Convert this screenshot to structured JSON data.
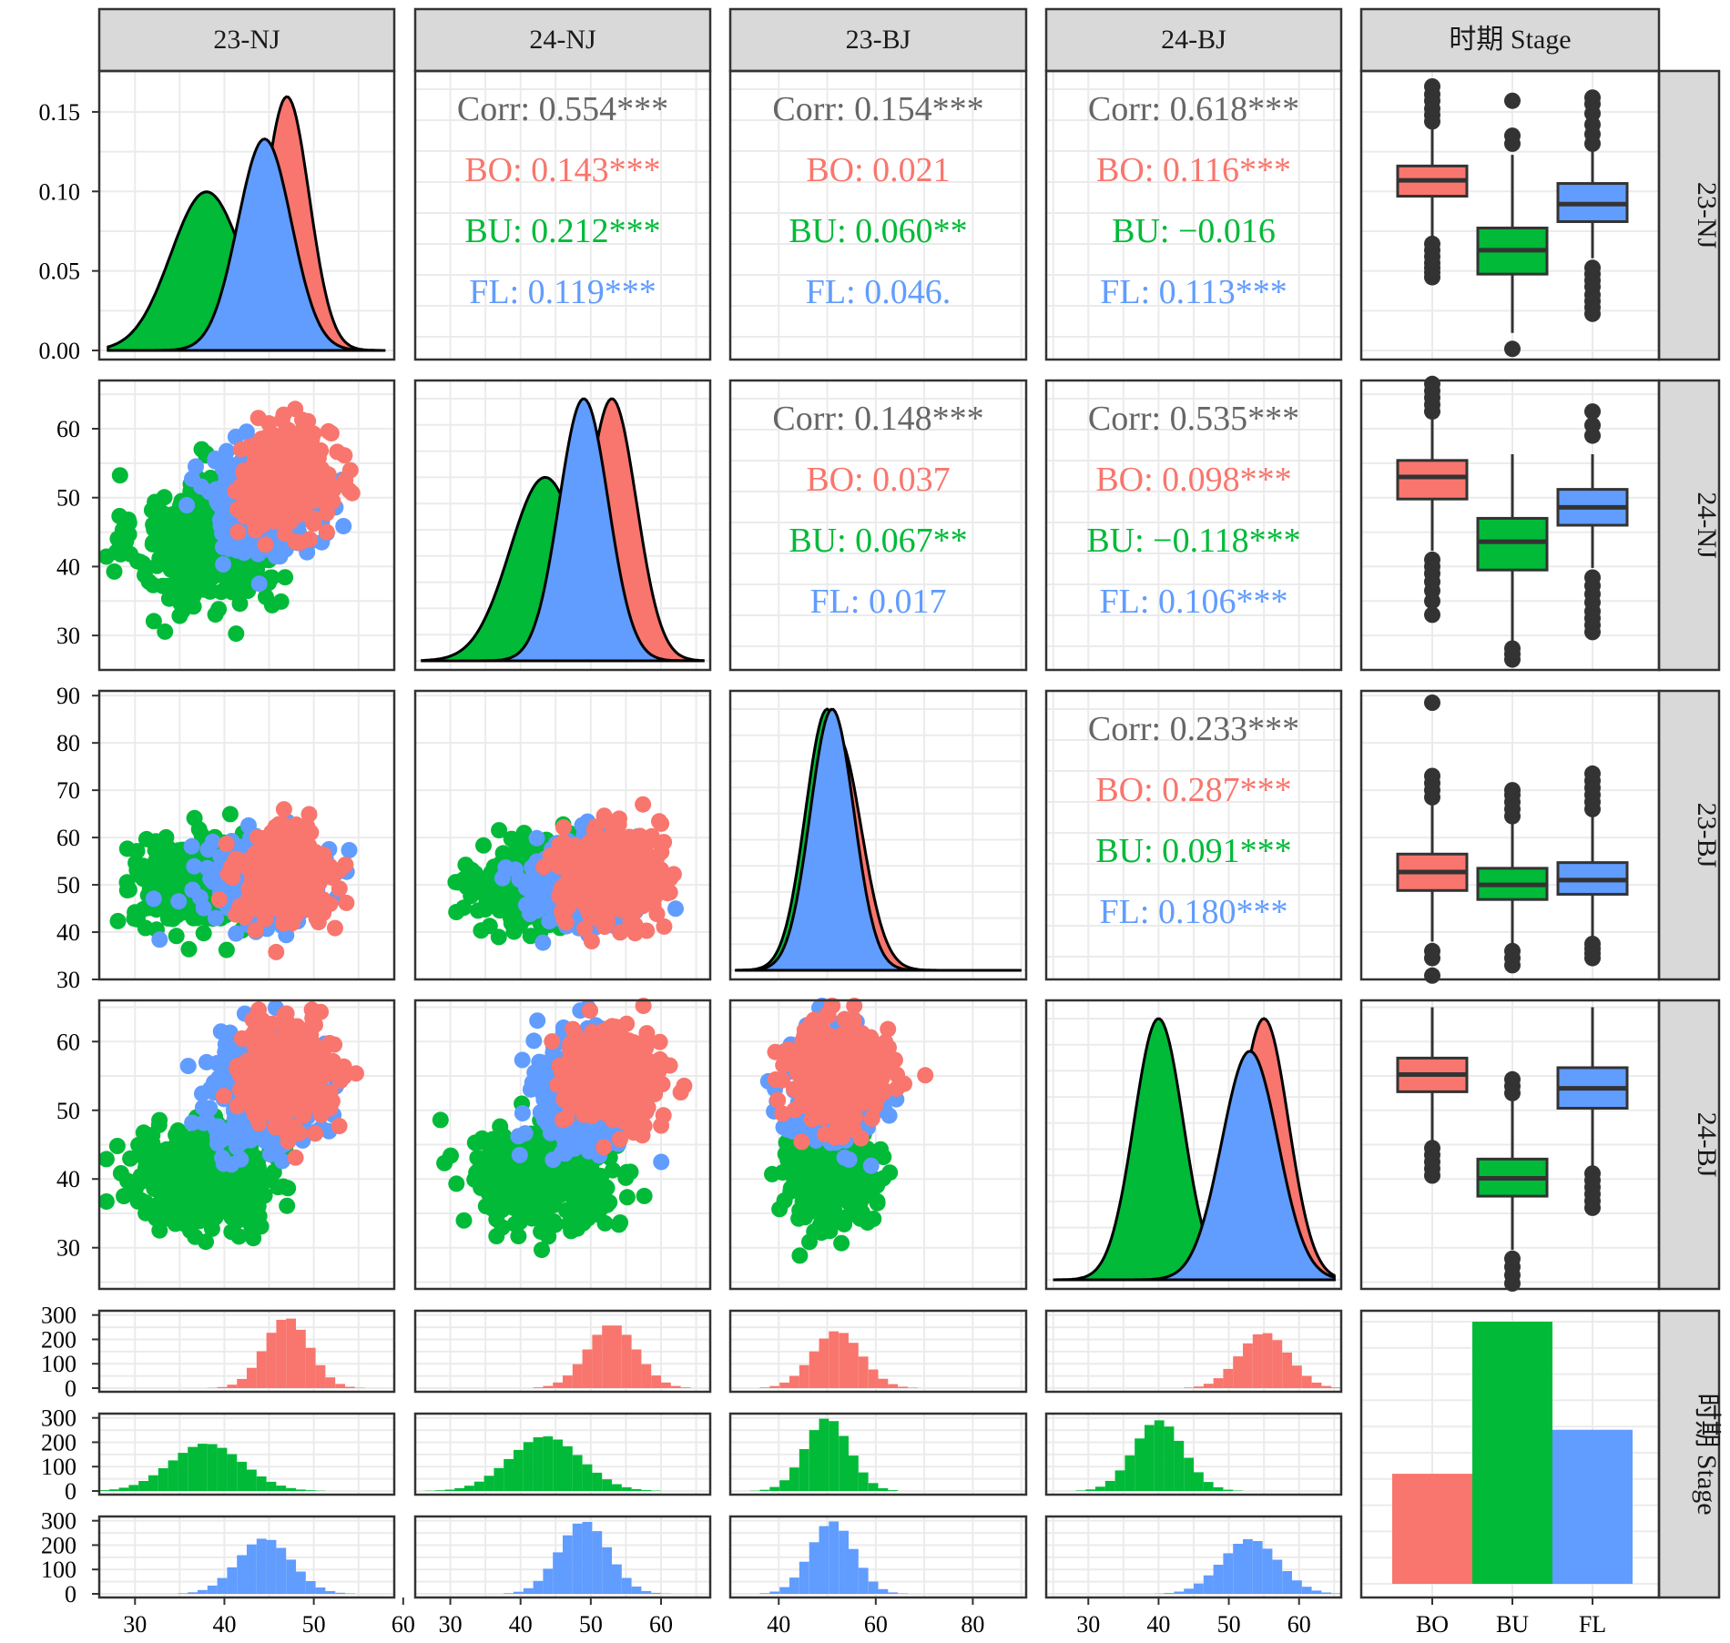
{
  "chart_data": {
    "type": "scatter",
    "variables": [
      "23-NJ",
      "24-NJ",
      "23-BJ",
      "24-BJ"
    ],
    "group_variable": "时期 Stage",
    "groups": [
      {
        "name": "BO",
        "color": "#F8766D"
      },
      {
        "name": "BU",
        "color": "#00BA38"
      },
      {
        "name": "FL",
        "color": "#619CFF"
      }
    ],
    "axis_ranges": {
      "23-NJ": [
        26,
        59
      ],
      "24-NJ": [
        25,
        67
      ],
      "23-BJ": [
        30,
        91
      ],
      "24-BJ": [
        24,
        66
      ]
    },
    "axis_ticks": {
      "23-NJ": [
        "30",
        "40",
        "50",
        "60"
      ],
      "24-NJ": [
        "30",
        "40",
        "50",
        "60"
      ],
      "23-BJ": [
        "40",
        "60",
        "80"
      ],
      "24-BJ": [
        "30",
        "40",
        "50",
        "60"
      ]
    },
    "row_axis_ticks": {
      "23-NJ": [
        "0.00",
        "0.05",
        "0.10",
        "0.15"
      ],
      "24-NJ": [
        "30",
        "40",
        "50",
        "60"
      ],
      "23-BJ": [
        "30",
        "40",
        "50",
        "60",
        "70",
        "80",
        "90"
      ],
      "24-BJ": [
        "30",
        "40",
        "50",
        "60"
      ]
    },
    "density_y_range": [
      0,
      0.17
    ],
    "group_stats": {
      "BO": {
        "23-NJ": [
          47,
          2.5
        ],
        "24-NJ": [
          53,
          3.5
        ],
        "23-BJ": [
          52,
          5
        ],
        "24-BJ": [
          55,
          3.5
        ]
      },
      "BU": {
        "23-NJ": [
          38,
          4
        ],
        "24-NJ": [
          43.5,
          5
        ],
        "23-BJ": [
          50,
          4.5
        ],
        "24-BJ": [
          40,
          3.5
        ]
      },
      "FL": {
        "23-NJ": [
          44.5,
          3
        ],
        "24-NJ": [
          49,
          3.5
        ],
        "23-BJ": [
          51,
          4.5
        ],
        "24-BJ": [
          53,
          4
        ]
      }
    },
    "correlations": [
      {
        "row": "23-NJ",
        "col": "24-NJ",
        "lines": [
          "Corr: 0.554***",
          "BO: 0.143***",
          "BU: 0.212***",
          "FL: 0.119***"
        ]
      },
      {
        "row": "23-NJ",
        "col": "23-BJ",
        "lines": [
          "Corr: 0.154***",
          "BO: 0.021",
          "BU: 0.060**",
          "FL: 0.046."
        ]
      },
      {
        "row": "23-NJ",
        "col": "24-BJ",
        "lines": [
          "Corr: 0.618***",
          "BO: 0.116***",
          "BU: −0.016",
          "FL: 0.113***"
        ]
      },
      {
        "row": "24-NJ",
        "col": "23-BJ",
        "lines": [
          "Corr: 0.148***",
          "BO: 0.037",
          "BU: 0.067**",
          "FL: 0.017"
        ]
      },
      {
        "row": "24-NJ",
        "col": "24-BJ",
        "lines": [
          "Corr: 0.535***",
          "BO: 0.098***",
          "BU: −0.118***",
          "FL: 0.106***"
        ]
      },
      {
        "row": "23-BJ",
        "col": "24-BJ",
        "lines": [
          "Corr: 0.233***",
          "BO: 0.287***",
          "BU: 0.091***",
          "FL: 0.180***"
        ]
      }
    ],
    "boxplots": {
      "23-NJ": [
        {
          "group": "BO",
          "q1": 0.097,
          "median": 0.107,
          "q3": 0.116,
          "whisker_low": 0.069,
          "whisker_high": 0.142,
          "outliers": [
            0.046,
            0.049,
            0.052,
            0.055,
            0.059,
            0.063,
            0.067,
            0.144,
            0.148,
            0.152,
            0.157,
            0.161,
            0.166
          ]
        },
        {
          "group": "BU",
          "q1": 0.048,
          "median": 0.063,
          "q3": 0.077,
          "whisker_low": 0.011,
          "whisker_high": 0.123,
          "outliers": [
            0.001,
            0.13,
            0.135,
            0.157
          ]
        },
        {
          "group": "FL",
          "q1": 0.081,
          "median": 0.092,
          "q3": 0.105,
          "whisker_low": 0.058,
          "whisker_high": 0.127,
          "outliers": [
            0.023,
            0.027,
            0.031,
            0.035,
            0.04,
            0.044,
            0.048,
            0.052,
            0.13,
            0.136,
            0.142,
            0.149,
            0.155,
            0.159
          ]
        }
      ],
      "24-NJ": [
        {
          "group": "BO",
          "q1": 49.8,
          "median": 53.0,
          "q3": 55.4,
          "whisker_low": 42.3,
          "whisker_high": 61.7,
          "outliers": [
            33,
            35,
            36.5,
            37.8,
            39,
            40,
            41,
            62.5,
            63.5,
            64.5,
            65.5,
            66.5
          ]
        },
        {
          "group": "BU",
          "q1": 39.5,
          "median": 43.6,
          "q3": 47.0,
          "whisker_low": 29.2,
          "whisker_high": 56.3,
          "outliers": [
            26.5,
            27.3,
            28.1
          ]
        },
        {
          "group": "FL",
          "q1": 46.0,
          "median": 48.6,
          "q3": 51.2,
          "whisker_low": 39.8,
          "whisker_high": 56.3,
          "outliers": [
            30.5,
            31.5,
            32.5,
            33.5,
            34.8,
            36,
            37.2,
            38.4,
            59,
            60.5,
            62.5
          ]
        }
      ],
      "23-BJ": [
        {
          "group": "BO",
          "q1": 48.8,
          "median": 52.7,
          "q3": 56.5,
          "whisker_low": 38.0,
          "whisker_high": 67.4,
          "outliers": [
            30.8,
            34.5,
            36,
            68.5,
            70,
            71.5,
            73,
            88.5
          ]
        },
        {
          "group": "BU",
          "q1": 46.9,
          "median": 50.0,
          "q3": 53.5,
          "whisker_low": 37.5,
          "whisker_high": 63.0,
          "outliers": [
            33,
            34.5,
            36,
            64.5,
            66,
            67.5,
            69,
            70
          ]
        },
        {
          "group": "FL",
          "q1": 48.0,
          "median": 51.0,
          "q3": 54.7,
          "whisker_low": 38.3,
          "whisker_high": 64.6,
          "outliers": [
            34.5,
            35.5,
            36.5,
            37.5,
            66,
            67.5,
            69,
            70.5,
            72,
            73.5
          ]
        }
      ],
      "24-BJ": [
        {
          "group": "BO",
          "q1": 52.7,
          "median": 55.2,
          "q3": 57.6,
          "whisker_low": 45.6,
          "whisker_high": 65.0,
          "outliers": [
            40.5,
            41.5,
            42.5,
            43.5,
            44.5
          ]
        },
        {
          "group": "BU",
          "q1": 37.5,
          "median": 40.1,
          "q3": 42.9,
          "whisker_low": 29.7,
          "whisker_high": 51.5,
          "outliers": [
            24.8,
            26.0,
            27.2,
            28.4,
            52.5,
            53.5,
            54.5
          ]
        },
        {
          "group": "FL",
          "q1": 50.3,
          "median": 53.2,
          "q3": 56.2,
          "whisker_low": 41.6,
          "whisker_high": 65.0,
          "outliers": [
            35.8,
            36.8,
            37.8,
            38.8,
            39.8,
            40.8
          ]
        }
      ]
    },
    "bar_counts": {
      "BO": 110,
      "BU": 262,
      "FL": 154
    },
    "hist_y_ticks": [
      "0",
      "100",
      "200",
      "300"
    ],
    "hist_y_range": [
      0,
      310
    ],
    "hist_peaks": {
      "BO": {
        "23-NJ": 290,
        "24-NJ": 262,
        "23-BJ": 235,
        "24-BJ": 228
      },
      "BU": {
        "23-NJ": 195,
        "24-NJ": 225,
        "23-BJ": 300,
        "24-BJ": 290
      },
      "FL": {
        "23-NJ": 228,
        "24-NJ": 298,
        "23-BJ": 298,
        "24-BJ": 225
      }
    },
    "grid": true,
    "legend": "none"
  }
}
